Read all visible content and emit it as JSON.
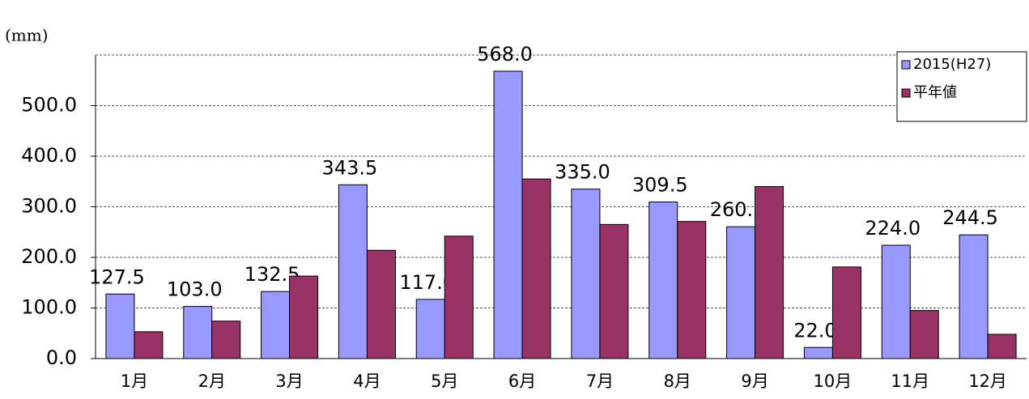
{
  "chart_data": {
    "type": "bar",
    "y_label": "(mm)",
    "categories": [
      "1月",
      "2月",
      "3月",
      "4月",
      "5月",
      "6月",
      "7月",
      "8月",
      "9月",
      "10月",
      "11月",
      "12月"
    ],
    "series": [
      {
        "name": "2015(H27)",
        "color": "#9999ff",
        "values": [
          127.5,
          103,
          132.5,
          343.5,
          117,
          568,
          335,
          309.5,
          260.5,
          22,
          224,
          244.5
        ],
        "value_labels": [
          "127.5",
          "103.0",
          "132.5",
          "343.5",
          "117.0",
          "568.0",
          "335.0",
          "309.5",
          "260.5",
          "22.0",
          "224.0",
          "244.5"
        ]
      },
      {
        "name": "平年値",
        "color": "#993366",
        "values": [
          53,
          74,
          163,
          214,
          242,
          355,
          265,
          271,
          340,
          181,
          95,
          48
        ]
      }
    ],
    "ylim": [
      0,
      600
    ],
    "yticks": [
      {
        "value": 0,
        "label": "0.0"
      },
      {
        "value": 100,
        "label": "100.0"
      },
      {
        "value": 200,
        "label": "200.0"
      },
      {
        "value": 300,
        "label": "300.0"
      },
      {
        "value": 400,
        "label": "400.0"
      },
      {
        "value": 500,
        "label": "500.0"
      }
    ],
    "grid": true,
    "legend": "top-right"
  }
}
